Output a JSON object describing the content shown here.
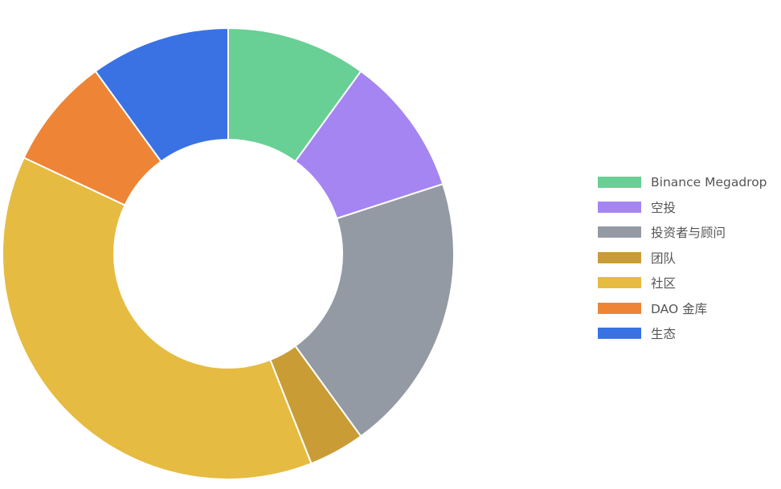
{
  "chart_data": {
    "type": "pie",
    "donut": true,
    "title": "",
    "legend_position": "right",
    "categories": [
      "Binance Megadrop",
      "空投",
      "投资者与顾问",
      "团队",
      "社区",
      "DAO 金库",
      "生态"
    ],
    "values": [
      10,
      10,
      20,
      4,
      38,
      8,
      10
    ],
    "unit": "%",
    "colors": [
      "#68cf95",
      "#a485f2",
      "#949aa3",
      "#c99c36",
      "#e6bb41",
      "#ee8536",
      "#3a72e4"
    ]
  }
}
